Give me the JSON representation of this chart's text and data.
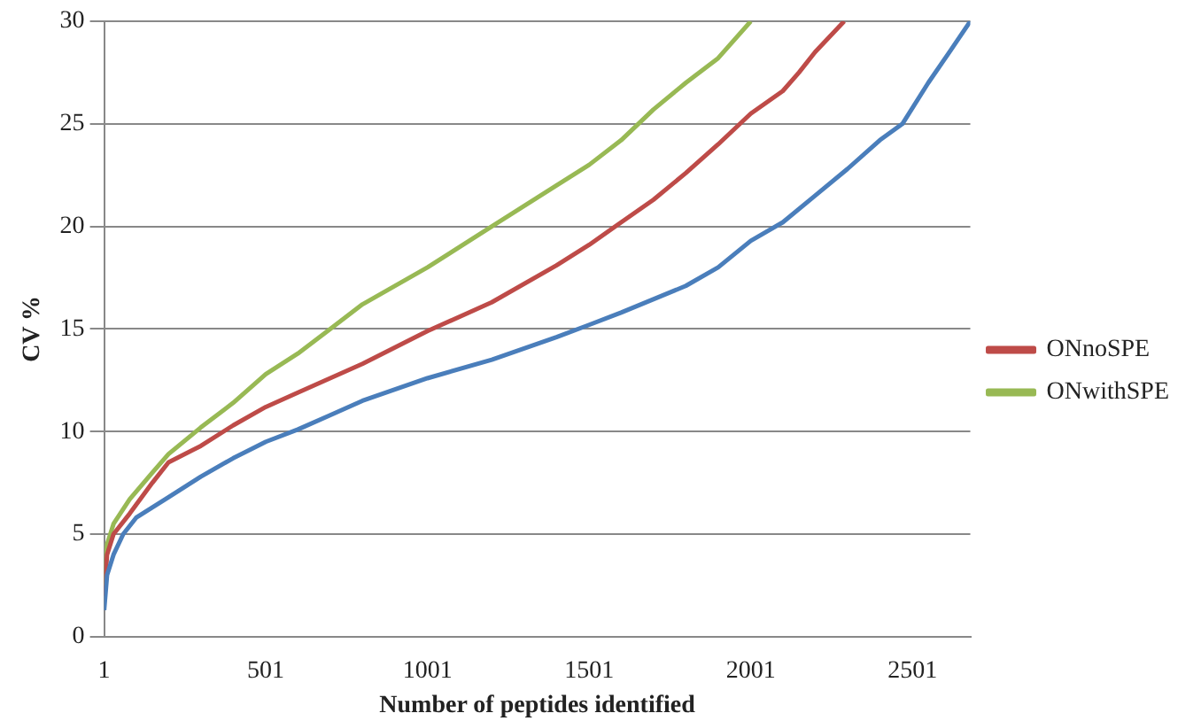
{
  "chart_data": {
    "type": "line",
    "xlabel": "Number of peptides identified",
    "ylabel": "CV %",
    "xlim": [
      1,
      2680
    ],
    "xticks": [
      1,
      501,
      1001,
      1501,
      2001,
      2501
    ],
    "ylim": [
      0,
      30
    ],
    "yticks": [
      0,
      5,
      10,
      15,
      20,
      25,
      30
    ],
    "grid": "y",
    "legend": "right",
    "marker": "none",
    "line_style": "solid",
    "series": [
      {
        "color": "#4a7ebb",
        "x": [
          1,
          10,
          30,
          60,
          100,
          200,
          300,
          400,
          501,
          600,
          700,
          800,
          1001,
          1200,
          1400,
          1501,
          1600,
          1800,
          1900,
          2001,
          2100,
          2200,
          2300,
          2400,
          2470,
          2550,
          2620,
          2680
        ],
        "values": [
          1.3,
          3,
          4,
          5,
          5.8,
          6.8,
          7.8,
          8.7,
          9.5,
          10.1,
          10.8,
          11.5,
          12.6,
          13.5,
          14.6,
          15.2,
          15.8,
          17.1,
          18,
          19.3,
          20.2,
          21.5,
          22.8,
          24.2,
          25,
          27,
          28.6,
          30
        ]
      },
      {
        "name": "ONnoSPE",
        "color": "#be4b48",
        "x": [
          1,
          10,
          30,
          80,
          150,
          200,
          300,
          400,
          501,
          600,
          800,
          1001,
          1200,
          1400,
          1501,
          1600,
          1700,
          1800,
          1900,
          2001,
          2100,
          2150,
          2200,
          2290
        ],
        "values": [
          2,
          4,
          5,
          6,
          7.5,
          8.5,
          9.3,
          10.3,
          11.2,
          11.9,
          13.3,
          14.9,
          16.3,
          18.1,
          19.1,
          20.2,
          21.3,
          22.6,
          24,
          25.5,
          26.6,
          27.5,
          28.5,
          30
        ]
      },
      {
        "name": "ONwithSPE",
        "color": "#98b954",
        "x": [
          1,
          10,
          30,
          80,
          150,
          200,
          300,
          400,
          501,
          600,
          700,
          800,
          1001,
          1200,
          1400,
          1501,
          1600,
          1700,
          1800,
          1900,
          2001
        ],
        "values": [
          2.5,
          4.5,
          5.5,
          6.7,
          8,
          8.9,
          10.2,
          11.4,
          12.8,
          13.8,
          15,
          16.2,
          18,
          20,
          22,
          23,
          24.2,
          25.7,
          27,
          28.2,
          30
        ]
      }
    ]
  }
}
